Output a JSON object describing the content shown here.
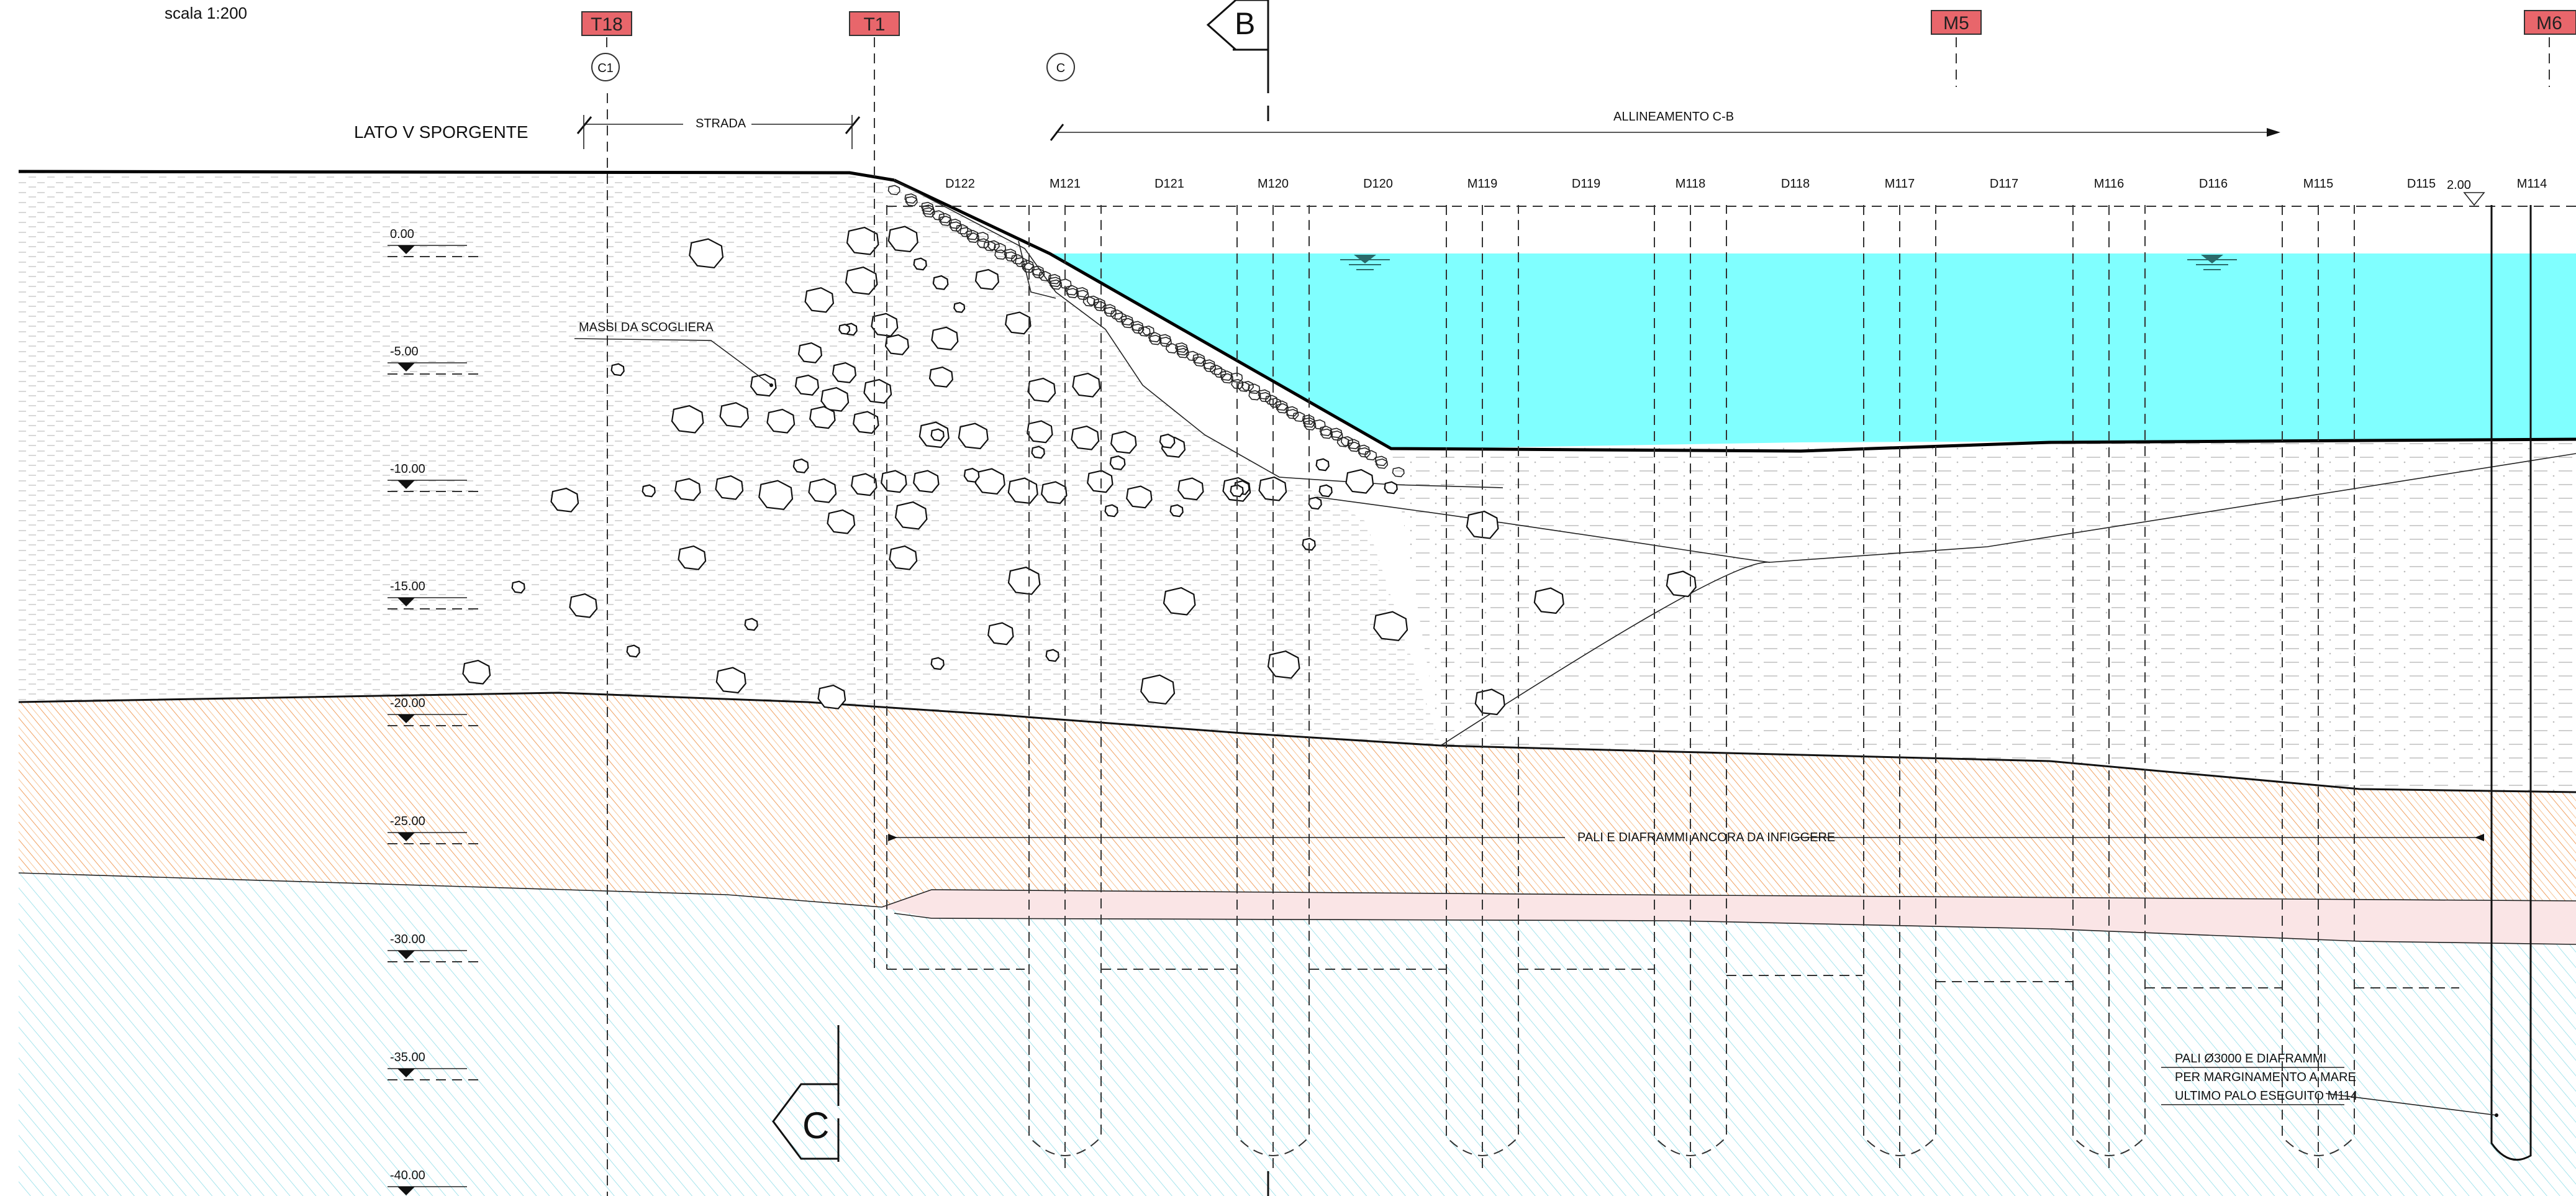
{
  "scale_label": "scala 1:200",
  "side_label": "LATO V SPORGENTE",
  "road_label": "STRADA",
  "alignment_label": "ALLINEAMENTO C-B",
  "rocks_label": "MASSI DA SCOGLIERA",
  "piles_to_drive_label": "PALI E DIAFRAMMI ANCORA DA INFIGGERE",
  "note_lines": [
    "PALI Ø3000  E DIAFRAMMI",
    "PER MARGINAMENTO A MARE",
    "ULTIMO PALO ESEGUITO M114"
  ],
  "section_letters": {
    "top": "B",
    "bottom": "C"
  },
  "circle_markers": [
    "C1",
    "C"
  ],
  "tags": [
    "T18",
    "T1",
    "M5",
    "M6"
  ],
  "element_labels": [
    "D122",
    "M121",
    "D121",
    "M120",
    "D120",
    "M119",
    "D119",
    "M118",
    "D118",
    "M117",
    "D117",
    "M116",
    "D116",
    "M115",
    "D115",
    "M114"
  ],
  "top_elevation_label": "2.00",
  "levels": [
    "0.00",
    "-5.00",
    "-10.00",
    "-15.00",
    "-20.00",
    "-25.00",
    "-30.00",
    "-35.00",
    "-40.00"
  ],
  "colors": {
    "water": "#80FFFF",
    "tag_fill": "#E8666B",
    "clay_hatch": "#F0A060",
    "deep_hatch": "#8FDDE8",
    "pink_band": "#F6D3D6"
  }
}
